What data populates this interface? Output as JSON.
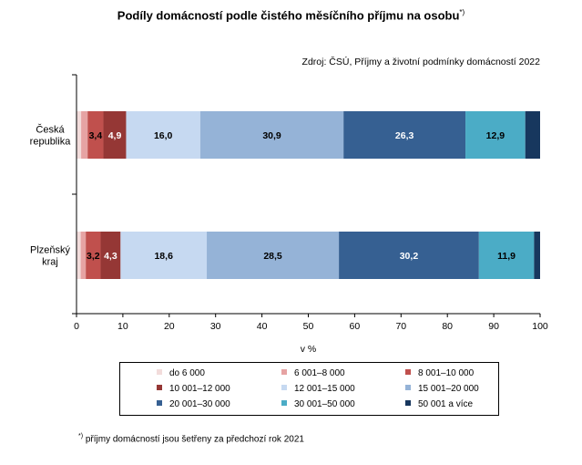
{
  "title_main": "Podíly domácností podle čistého měsíčního příjmu na osobu",
  "title_mark": "*)",
  "source": "Zdroj: ČSÚ,  Příjmy  a životní podmínky domácností 2022",
  "footnote_mark": "*)",
  "footnote_text": " příjmy  domácností jsou šetřeny za předchozí rok 2021",
  "chart_data": {
    "type": "bar",
    "orientation": "horizontal",
    "stacked": true,
    "categories": [
      [
        "Česká",
        "republika"
      ],
      [
        "Plzeňský",
        "kraj"
      ]
    ],
    "series": [
      {
        "name": "do 6 000",
        "color": "#f2dcdb",
        "values": [
          1.0,
          0.9
        ]
      },
      {
        "name": "6 001–8 000",
        "color": "#e6a3a3",
        "values": [
          1.4,
          1.1
        ]
      },
      {
        "name": "8 001–10 000",
        "color": "#c0504d",
        "values": [
          3.4,
          3.2
        ]
      },
      {
        "name": "10 001–12 000",
        "color": "#953735",
        "values": [
          4.9,
          4.3
        ]
      },
      {
        "name": "12 001–15 000",
        "color": "#c6d9f1",
        "values": [
          16.0,
          18.6
        ]
      },
      {
        "name": "15 001–20 000",
        "color": "#95b3d7",
        "values": [
          30.9,
          28.5
        ]
      },
      {
        "name": "20 001–30 000",
        "color": "#366092",
        "values": [
          26.3,
          30.2
        ]
      },
      {
        "name": "30 001–50 000",
        "color": "#4bacc6",
        "values": [
          12.9,
          11.9
        ]
      },
      {
        "name": "50 001 a více",
        "color": "#17375e",
        "values": [
          3.2,
          1.3
        ]
      }
    ],
    "data_labels": [
      [
        null,
        null,
        "3,4",
        "4,9",
        "16,0",
        "30,9",
        "26,3",
        "12,9",
        null
      ],
      [
        null,
        null,
        "3,2",
        "4,3",
        "18,6",
        "28,5",
        "30,2",
        "11,9",
        null
      ]
    ],
    "label_colors": [
      "#000000",
      "#000000",
      "#000000",
      "#ffffff",
      "#000000",
      "#000000",
      "#ffffff",
      "#000000",
      "#ffffff"
    ],
    "xlim": [
      0,
      100
    ],
    "xticks": [
      0,
      10,
      20,
      30,
      40,
      50,
      60,
      70,
      80,
      90,
      100
    ],
    "xlabel": "v %",
    "legend_position": "bottom"
  }
}
